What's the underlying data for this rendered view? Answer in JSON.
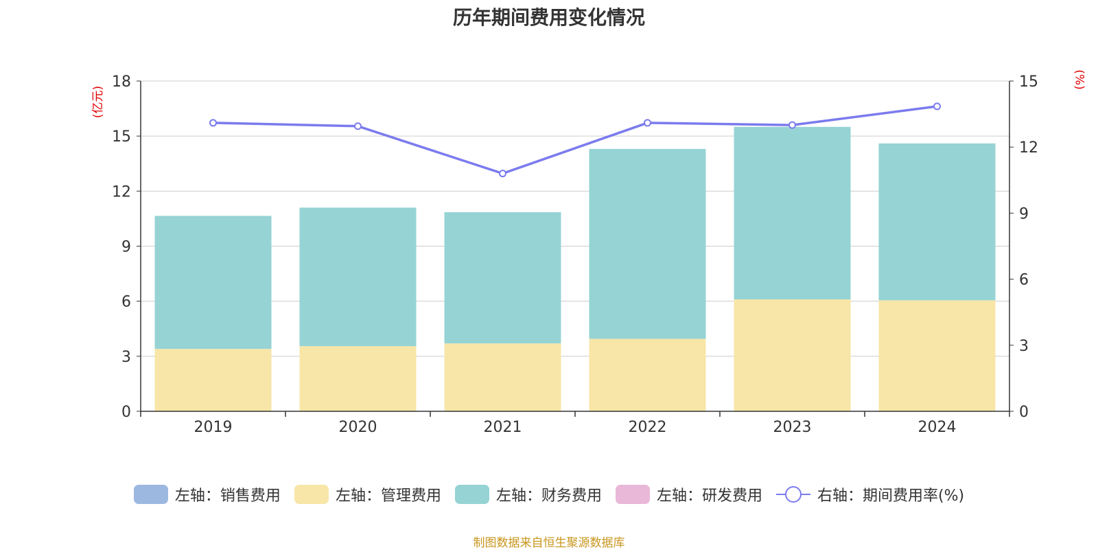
{
  "title": "历年期间费用变化情况",
  "left_unit": "(亿元)",
  "right_unit": "(%)",
  "source": "制图数据来自恒生聚源数据库",
  "colors": {
    "sales": "#9db8e0",
    "admin": "#f7e6a8",
    "finance": "#96d3d4",
    "rnd": "#e9b7d8",
    "rate": "#7b7bee",
    "grid": "#cccccc",
    "axis": "#333333"
  },
  "legend": [
    {
      "label": "左轴：销售费用",
      "key": "sales",
      "type": "bar"
    },
    {
      "label": "左轴：管理费用",
      "key": "admin",
      "type": "bar"
    },
    {
      "label": "左轴：财务费用",
      "key": "finance",
      "type": "bar"
    },
    {
      "label": "左轴：研发费用",
      "key": "rnd",
      "type": "bar"
    },
    {
      "label": "右轴：期间费用率(%)",
      "key": "rate",
      "type": "line"
    }
  ],
  "chart_data": {
    "type": "bar",
    "stacked": true,
    "categories": [
      "2019",
      "2020",
      "2021",
      "2022",
      "2023",
      "2024"
    ],
    "left_axis": {
      "min": 0,
      "max": 18,
      "ticks": [
        "0",
        "3",
        "6",
        "9",
        "12",
        "15",
        "18"
      ]
    },
    "right_axis": {
      "min": 0,
      "max": 15,
      "ticks": [
        "0",
        "3",
        "6",
        "9",
        "12",
        "15"
      ]
    },
    "grid": true,
    "legend_position": "bottom",
    "series": [
      {
        "name": "左轴：销售费用",
        "key": "sales",
        "axis": "left",
        "values": [
          0,
          0,
          0,
          0,
          0,
          0
        ]
      },
      {
        "name": "左轴：管理费用",
        "key": "admin",
        "axis": "left",
        "values": [
          3.4,
          3.55,
          3.7,
          3.95,
          6.1,
          6.05
        ]
      },
      {
        "name": "左轴：财务费用",
        "key": "finance",
        "axis": "left",
        "values": [
          7.25,
          7.55,
          7.15,
          10.35,
          9.4,
          8.55
        ]
      },
      {
        "name": "左轴：研发费用",
        "key": "rnd",
        "axis": "left",
        "values": [
          0,
          0,
          0,
          0,
          0,
          0
        ]
      },
      {
        "name": "右轴：期间费用率(%)",
        "key": "rate",
        "axis": "right",
        "type": "line",
        "values": [
          13.1,
          12.95,
          10.8,
          13.1,
          13.0,
          13.85
        ]
      }
    ]
  }
}
